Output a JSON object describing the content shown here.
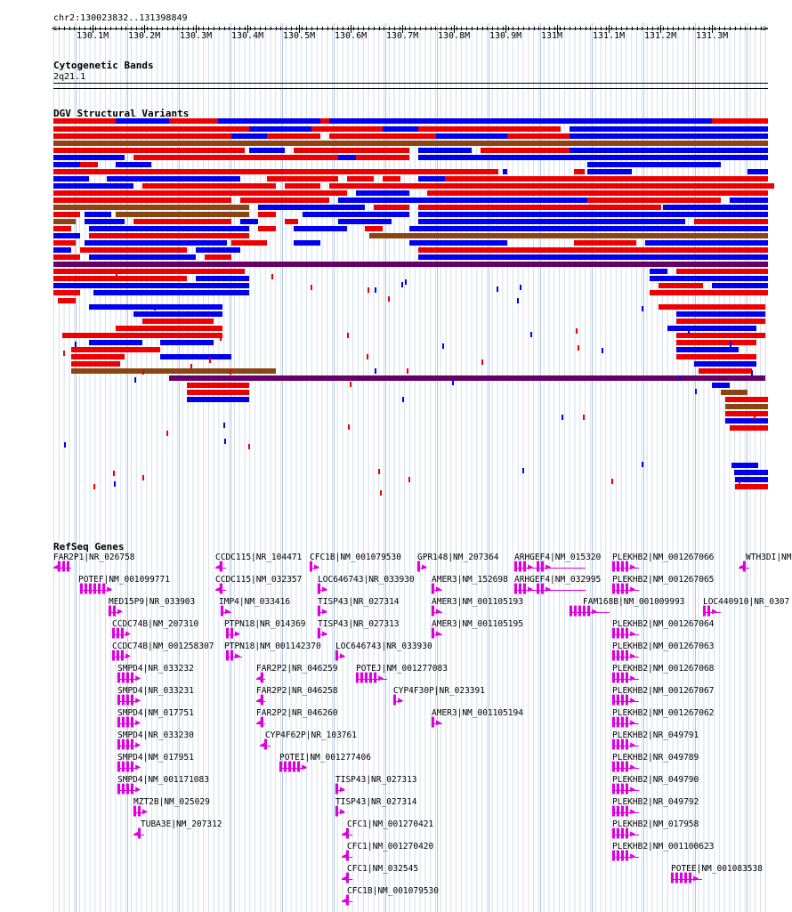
{
  "ruler": {
    "location": "chr2:130023832..131398849",
    "ticks": [
      "130.1M",
      "130.2M",
      "130.3M",
      "130.4M",
      "130.5M",
      "130.6M",
      "130.7M",
      "130.8M",
      "130.9M",
      "131M",
      "131.1M",
      "131.2M",
      "131.3M"
    ]
  },
  "cytobands": {
    "title": "Cytogenetic Bands",
    "band": "2q21.1"
  },
  "dgv": {
    "title": "DGV Structural Variants",
    "colors": {
      "loss": "#ee0000",
      "gain": "#0000ee",
      "both": "#8b4513",
      "complex": "#660066"
    }
  },
  "refseq": {
    "title": "RefSeq Genes",
    "color": "#dd00dd",
    "genes": [
      "FAR2P1|NR_026758",
      "POTEF|NM_001099771",
      "MED15P9|NR_033903",
      "CCDC74B|NM_207310",
      "CCDC74B|NM_001258307",
      "SMPD4|NR_033232",
      "SMPD4|NR_033231",
      "SMPD4|NM_017751",
      "SMPD4|NR_033230",
      "SMPD4|NM_017951",
      "SMPD4|NM_001171083",
      "MZT2B|NM_025029",
      "TUBA3E|NM_207312",
      "CCDC115|NR_104471",
      "CCDC115|NM_032357",
      "IMP4|NM_033416",
      "PTPN18|NR_014369",
      "PTPN18|NM_001142370",
      "FAR2P2|NR_046259",
      "FAR2P2|NR_046258",
      "FAR2P2|NR_046260",
      "CYP4F62P|NR_103761",
      "POTEI|NM_001277406",
      "CFC1B|NM_001079530",
      "LOC646743|NR_033930",
      "TISP43|NR_027314",
      "TISP43|NR_027313",
      "LOC646743|NR_033930",
      "POTEJ|NM_001277083",
      "CYP4F30P|NR_023391",
      "TISP43|NR_027313",
      "TISP43|NR_027314",
      "CFC1|NM_001270421",
      "CFC1|NM_001270420",
      "CFC1|NM_032545",
      "CFC1B|NM_001079530",
      "GPR148|NM_207364",
      "AMER3|NM_152698",
      "AMER3|NM_001105193",
      "AMER3|NM_001105195",
      "AMER3|NM_001105194",
      "ARHGEF4|NM_015320",
      "ARHGEF4|NM_032995",
      "FAM168B|NM_001009993",
      "PLEKHB2|NM_001267066",
      "PLEKHB2|NM_001267065",
      "PLEKHB2|NM_001267064",
      "PLEKHB2|NM_001267063",
      "PLEKHB2|NM_001267068",
      "PLEKHB2|NM_001267067",
      "PLEKHB2|NM_001267062",
      "PLEKHB2|NR_049791",
      "PLEKHB2|NR_049789",
      "PLEKHB2|NR_049790",
      "PLEKHB2|NR_049792",
      "PLEKHB2|NM_017958",
      "PLEKHB2|NM_001100623",
      "POTEE|NM_001083538",
      "WTH3DI|NM",
      "LOC440910|NR_0307"
    ]
  }
}
